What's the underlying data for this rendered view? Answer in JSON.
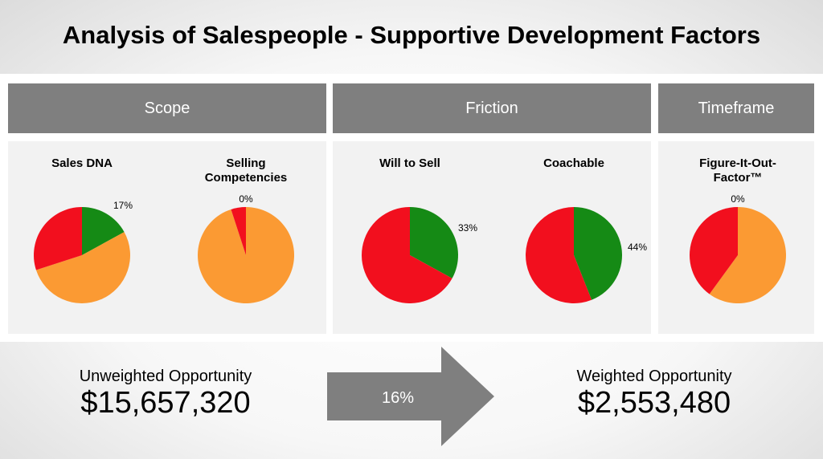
{
  "title": "Analysis of Salespeople - Supportive Development Factors",
  "colors": {
    "green": "#158a15",
    "red": "#f20f1e",
    "orange": "#fb9a33",
    "header_gray": "#7f7f7f"
  },
  "sections": [
    {
      "label": "Scope"
    },
    {
      "label": "Friction"
    },
    {
      "label": "Timeframe"
    }
  ],
  "chart_data": [
    {
      "type": "pie",
      "title_lines": [
        "Sales DNA"
      ],
      "label": "17%",
      "slices": [
        {
          "color": "green",
          "value": 17
        },
        {
          "color": "orange",
          "value": 53
        },
        {
          "color": "red",
          "value": 30
        }
      ]
    },
    {
      "type": "pie",
      "title_lines": [
        "Selling",
        "Competencies"
      ],
      "label": "0%",
      "slices": [
        {
          "color": "green",
          "value": 0
        },
        {
          "color": "orange",
          "value": 95
        },
        {
          "color": "red",
          "value": 5
        }
      ]
    },
    {
      "type": "pie",
      "title_lines": [
        "Will to Sell"
      ],
      "label": "33%",
      "slices": [
        {
          "color": "green",
          "value": 33
        },
        {
          "color": "red",
          "value": 67
        }
      ]
    },
    {
      "type": "pie",
      "title_lines": [
        "Coachable"
      ],
      "label": "44%",
      "slices": [
        {
          "color": "green",
          "value": 44
        },
        {
          "color": "red",
          "value": 56
        }
      ]
    },
    {
      "type": "pie",
      "title_lines": [
        "Figure-It-Out-",
        "Factor™"
      ],
      "label": "0%",
      "slices": [
        {
          "color": "green",
          "value": 0
        },
        {
          "color": "orange",
          "value": 60
        },
        {
          "color": "red",
          "value": 40
        }
      ]
    }
  ],
  "unweighted": {
    "label": "Unweighted Opportunity",
    "amount": "$15,657,320"
  },
  "weighted": {
    "label": "Weighted Opportunity",
    "amount": "$2,553,480"
  },
  "ratio": "16%"
}
